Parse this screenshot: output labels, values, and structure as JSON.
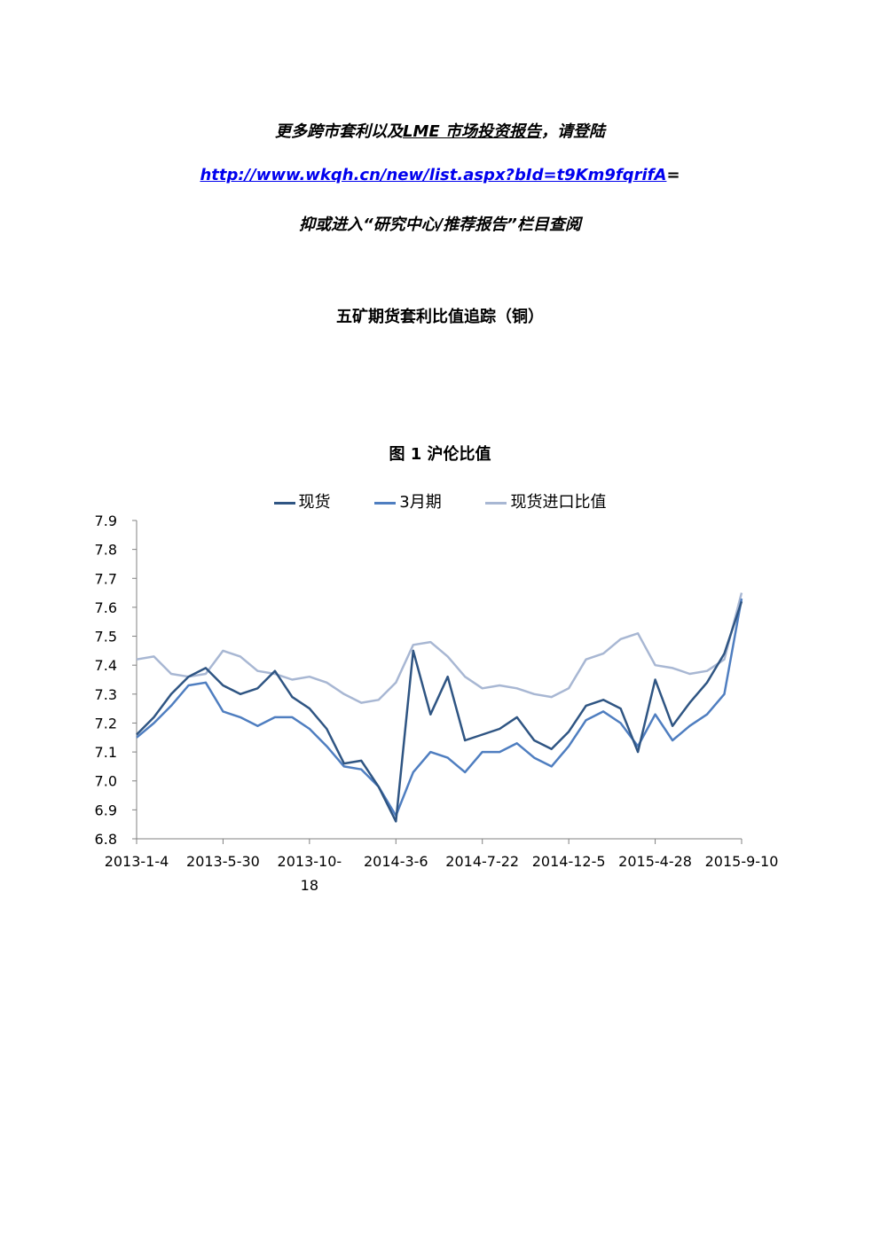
{
  "header": {
    "line1_prefix": "更多跨市套利以及",
    "line1_underlined": "LME 市场投资报告",
    "line1_suffix": "，请登陆",
    "link_text": "http://www.wkqh.cn/new/list.aspx?bId=t9Km9fqrifA",
    "link_tail": "=",
    "line3": "抑或进入“研究中心/推荐报告”栏目查阅"
  },
  "document": {
    "title": "五矿期货套利比值追踪（铜）",
    "figure_caption": "图 1    沪伦比值"
  },
  "chart_data": {
    "type": "line",
    "title": "",
    "xlabel": "",
    "ylabel": "",
    "ylim": [
      6.8,
      7.9
    ],
    "yticks": [
      "7.9",
      "7.8",
      "7.7",
      "7.6",
      "7.5",
      "7.4",
      "7.3",
      "7.2",
      "7.1",
      "7.0",
      "6.9",
      "6.8"
    ],
    "xtick_labels": [
      "2013-1-4",
      "2013-5-30",
      "2013-10-18",
      "2014-3-6",
      "2014-7-22",
      "2014-12-5",
      "2015-4-28",
      "2015-9-10"
    ],
    "legend_position": "top",
    "grid": false,
    "x": [
      "2013-1-4",
      "2013-2-1",
      "2013-3-1",
      "2013-3-29",
      "2013-4-26",
      "2013-5-30",
      "2013-6-28",
      "2013-7-26",
      "2013-8-23",
      "2013-9-20",
      "2013-10-18",
      "2013-11-15",
      "2013-12-13",
      "2014-1-10",
      "2014-2-7",
      "2014-3-6",
      "2014-4-4",
      "2014-5-2",
      "2014-5-30",
      "2014-6-27",
      "2014-7-22",
      "2014-8-19",
      "2014-9-16",
      "2014-10-14",
      "2014-11-11",
      "2014-12-5",
      "2015-1-5",
      "2015-2-2",
      "2015-3-2",
      "2015-3-30",
      "2015-4-28",
      "2015-5-26",
      "2015-6-23",
      "2015-7-21",
      "2015-8-18",
      "2015-9-10"
    ],
    "series": [
      {
        "name": "现货",
        "color": "#2f5583",
        "values": [
          7.16,
          7.22,
          7.3,
          7.36,
          7.39,
          7.33,
          7.3,
          7.32,
          7.38,
          7.29,
          7.25,
          7.18,
          7.06,
          7.07,
          6.98,
          6.86,
          7.45,
          7.23,
          7.36,
          7.14,
          7.16,
          7.18,
          7.22,
          7.14,
          7.11,
          7.17,
          7.26,
          7.28,
          7.25,
          7.1,
          7.35,
          7.19,
          7.27,
          7.34,
          7.44,
          7.62
        ]
      },
      {
        "name": "3月期",
        "color": "#4f7ec0",
        "values": [
          7.15,
          7.2,
          7.26,
          7.33,
          7.34,
          7.24,
          7.22,
          7.19,
          7.22,
          7.22,
          7.18,
          7.12,
          7.05,
          7.04,
          6.98,
          6.88,
          7.03,
          7.1,
          7.08,
          7.03,
          7.1,
          7.1,
          7.13,
          7.08,
          7.05,
          7.12,
          7.21,
          7.24,
          7.2,
          7.12,
          7.23,
          7.14,
          7.19,
          7.23,
          7.3,
          7.63
        ]
      },
      {
        "name": "现货进口比值",
        "color": "#a8b7d3",
        "values": [
          7.42,
          7.43,
          7.37,
          7.36,
          7.37,
          7.45,
          7.43,
          7.38,
          7.37,
          7.35,
          7.36,
          7.34,
          7.3,
          7.27,
          7.28,
          7.34,
          7.47,
          7.48,
          7.43,
          7.36,
          7.32,
          7.33,
          7.32,
          7.3,
          7.29,
          7.32,
          7.42,
          7.44,
          7.49,
          7.51,
          7.4,
          7.39,
          7.37,
          7.38,
          7.42,
          7.65
        ]
      }
    ]
  }
}
